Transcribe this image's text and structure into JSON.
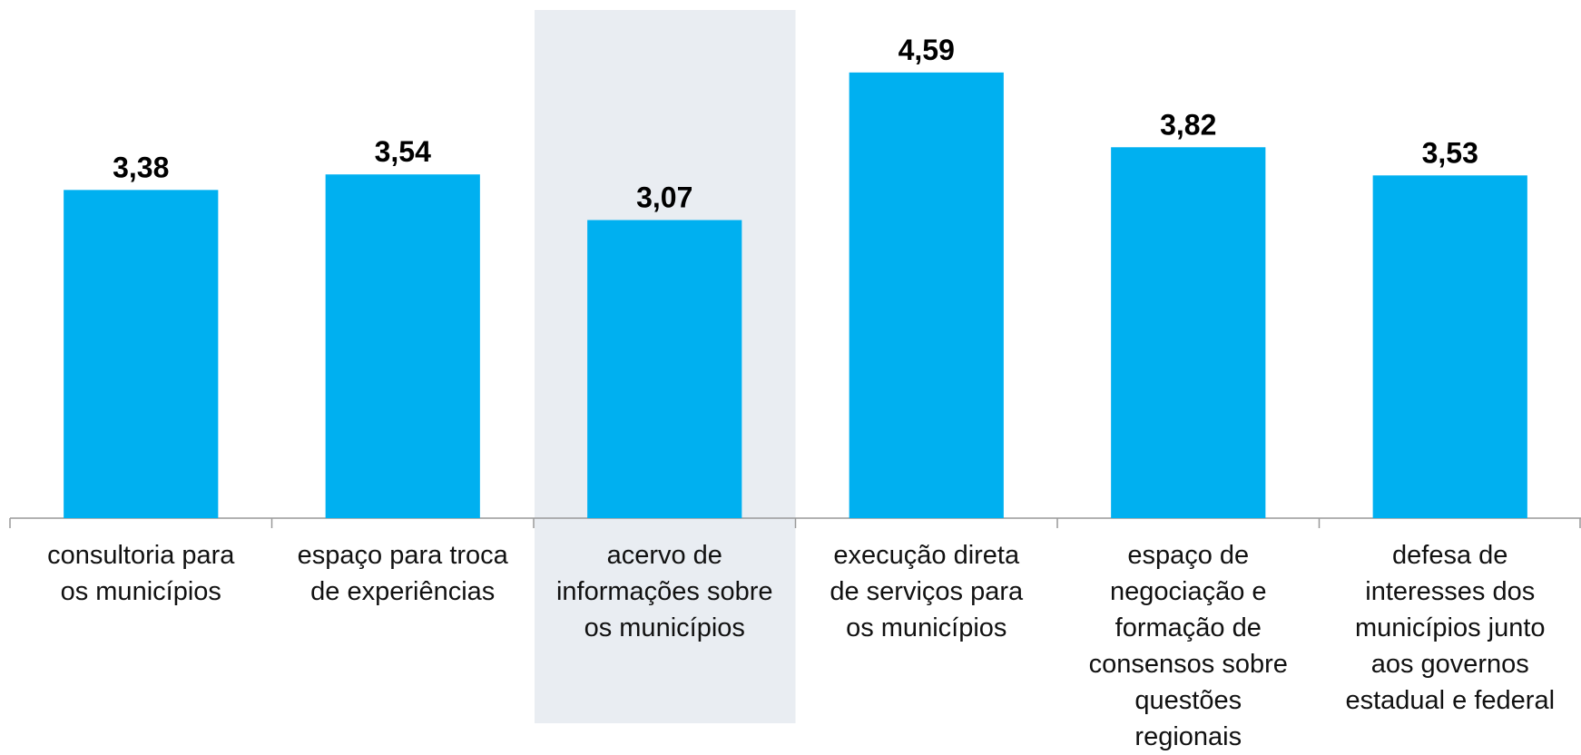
{
  "chart_data": {
    "type": "bar",
    "categories": [
      "consultoria para\nos municípios",
      "espaço para troca\nde experiências",
      "acervo de\ninformações sobre\nos municípios",
      "execução direta\nde serviços para\nos municípios",
      "espaço de\nnegociação e\nformação de\nconsensos sobre\nquestões\nregionais",
      "defesa de\ninteresses dos\nmunicípios junto\naos governos\nestadual e federal"
    ],
    "values": [
      3.38,
      3.54,
      3.07,
      4.59,
      3.82,
      3.53
    ],
    "value_labels": [
      "3,38",
      "3,54",
      "3,07",
      "4,59",
      "3,82",
      "3,53"
    ],
    "color": "#00b0f0",
    "ylim": [
      0,
      5
    ],
    "highlight": {
      "index": 2,
      "color": "#e9edf2"
    }
  }
}
